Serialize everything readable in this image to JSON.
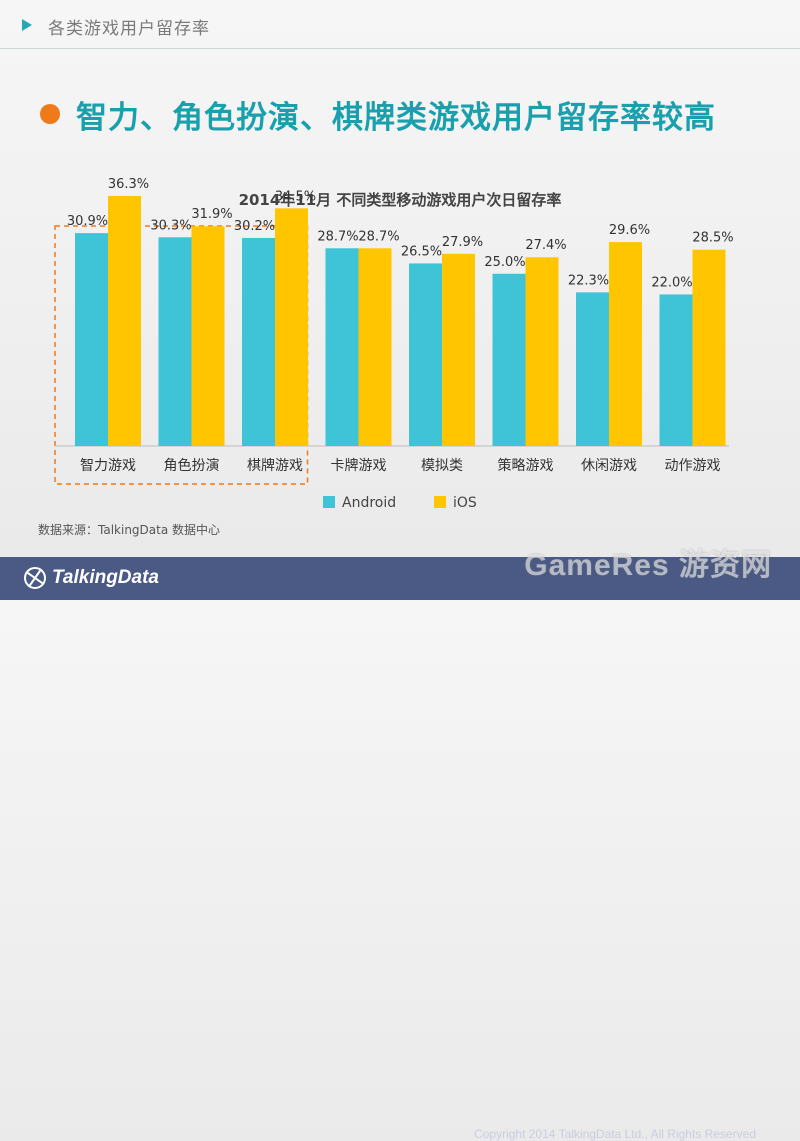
{
  "header": {
    "section_title": "各类游戏用户留存率"
  },
  "headline": "智力、角色扮演、棋牌类游戏用户留存率较高",
  "chart_data": {
    "type": "bar",
    "title": "2014年11月 不同类型移动游戏用户次日留存率",
    "categories": [
      "智力游戏",
      "角色扮演",
      "棋牌游戏",
      "卡牌游戏",
      "模拟类",
      "策略游戏",
      "休闲游戏",
      "动作游戏"
    ],
    "series": [
      {
        "name": "Android",
        "color": "#3ec3d7",
        "values": [
          30.9,
          30.3,
          30.2,
          28.7,
          26.5,
          25.0,
          22.3,
          22.0
        ],
        "labels": [
          "30.9%",
          "30.3%",
          "30.2%",
          "28.7%",
          "26.5%",
          "25.0%",
          "22.3%",
          "22.0%"
        ]
      },
      {
        "name": "iOS",
        "color": "#ffc600",
        "values": [
          36.3,
          31.9,
          34.5,
          28.7,
          27.9,
          27.4,
          29.6,
          28.5
        ],
        "labels": [
          "36.3%",
          "31.9%",
          "34.5%",
          "28.7%",
          "27.9%",
          "27.4%",
          "29.6%",
          "28.5%"
        ]
      }
    ],
    "ylim": [
      0,
      45
    ],
    "highlighted_categories": [
      "智力游戏",
      "角色扮演",
      "棋牌游戏"
    ],
    "legend_position": "bottom",
    "grid": false
  },
  "source_note": "数据来源：TalkingData 数据中心",
  "footer": {
    "logo_text": "TalkingData",
    "copyright": "Copyright 2014 TalkingData Ltd., All Rights Reserved",
    "watermark": "GameRes 游资网"
  }
}
